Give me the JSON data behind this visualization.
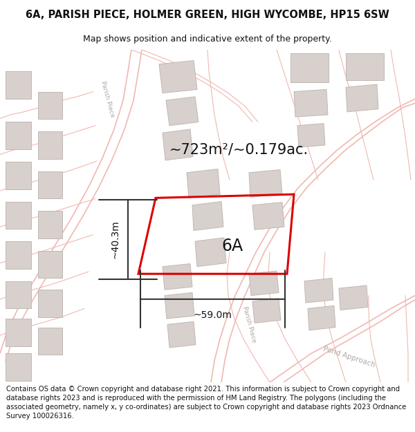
{
  "title_line1": "6A, PARISH PIECE, HOLMER GREEN, HIGH WYCOMBE, HP15 6SW",
  "title_line2": "Map shows position and indicative extent of the property.",
  "area_label": "~723m²/~0.179ac.",
  "property_label": "6A",
  "dim_width": "~59.0m",
  "dim_height": "~40.3m",
  "footer_text": "Contains OS data © Crown copyright and database right 2021. This information is subject to Crown copyright and database rights 2023 and is reproduced with the permission of HM Land Registry. The polygons (including the associated geometry, namely x, y co-ordinates) are subject to Crown copyright and database rights 2023 Ordnance Survey 100026316.",
  "bg_color": "#ffffff",
  "map_bg": "#ffffff",
  "road_color": "#f0b8b0",
  "building_color": "#d8d0cc",
  "building_edge": "#c0b8b4",
  "property_outline_color": "#dd0000",
  "dim_color": "#333333",
  "title_fontsize": 10.5,
  "subtitle_fontsize": 9,
  "area_fontsize": 15,
  "property_label_fontsize": 17,
  "dim_fontsize": 10,
  "footer_fontsize": 7.2,
  "street_label_color": "#b0a8a4"
}
